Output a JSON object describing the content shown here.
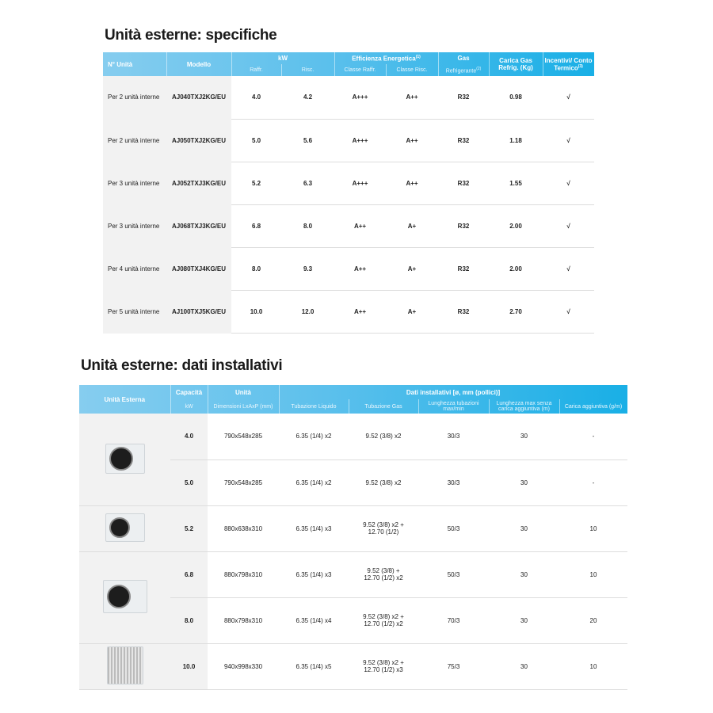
{
  "specs": {
    "title": "Unità esterne: specifiche",
    "headers": {
      "n_unita": "N° Unità",
      "modello": "Modello",
      "kw": "kW",
      "raffr": "Raffr.",
      "risc": "Risc.",
      "efficienza": "Efficienza Energetica",
      "efficienza_sup": "(1)",
      "classe_raffr": "Classe Raffr.",
      "classe_risc": "Classe Risc.",
      "gas": "Gas",
      "refrigerante": "Refrigerante",
      "refrigerante_sup": "(2)",
      "carica_gas": "Carica Gas Refrig. (Kg)",
      "incentivi": "Incentivi/ Conto Termico",
      "incentivi_sup": "(3)"
    },
    "rows": [
      {
        "n": "Per 2 unità interne",
        "modello": "AJ040TXJ2KG/EU",
        "raffr": "4.0",
        "risc": "4.2",
        "cl_raffr": "A+++",
        "cl_risc": "A++",
        "gas": "R32",
        "carica": "0.98",
        "incentivi": "√"
      },
      {
        "n": "Per 2 unità interne",
        "modello": "AJ050TXJ2KG/EU",
        "raffr": "5.0",
        "risc": "5.6",
        "cl_raffr": "A+++",
        "cl_risc": "A++",
        "gas": "R32",
        "carica": "1.18",
        "incentivi": "√"
      },
      {
        "n": "Per 3 unità interne",
        "modello": "AJ052TXJ3KG/EU",
        "raffr": "5.2",
        "risc": "6.3",
        "cl_raffr": "A+++",
        "cl_risc": "A++",
        "gas": "R32",
        "carica": "1.55",
        "incentivi": "√"
      },
      {
        "n": "Per 3 unità interne",
        "modello": "AJ068TXJ3KG/EU",
        "raffr": "6.8",
        "risc": "8.0",
        "cl_raffr": "A++",
        "cl_risc": "A+",
        "gas": "R32",
        "carica": "2.00",
        "incentivi": "√"
      },
      {
        "n": "Per 4 unità interne",
        "modello": "AJ080TXJ4KG/EU",
        "raffr": "8.0",
        "risc": "9.3",
        "cl_raffr": "A++",
        "cl_risc": "A+",
        "gas": "R32",
        "carica": "2.00",
        "incentivi": "√"
      },
      {
        "n": "Per 5 unità interne",
        "modello": "AJ100TXJ5KG/EU",
        "raffr": "10.0",
        "risc": "12.0",
        "cl_raffr": "A++",
        "cl_risc": "A+",
        "gas": "R32",
        "carica": "2.70",
        "incentivi": "√"
      }
    ]
  },
  "install": {
    "title": "Unità esterne: dati installativi",
    "headers": {
      "unita_esterna": "Unità Esterna",
      "capacita": "Capacità",
      "kw": "kW",
      "unita": "Unità",
      "dimensioni": "Dimensioni LxAxP (mm)",
      "dati": "Dati installativi [ø, mm (pollici)]",
      "liquido": "Tubazione Liquido",
      "gas": "Tubazione Gas",
      "lunghezza": "Lunghezza tubazioni max/min",
      "lunghezza_max": "Lunghezza max senza carica aggiuntiva (m)",
      "carica": "Carica aggiuntiva (g/m)"
    },
    "rows": [
      {
        "cap": "4.0",
        "dim": "790x548x285",
        "liq": "6.35 (1/4) x2",
        "gas": "9.52 (3/8) x2",
        "lung": "30/3",
        "lmax": "30",
        "carica": "-"
      },
      {
        "cap": "5.0",
        "dim": "790x548x285",
        "liq": "6.35 (1/4) x2",
        "gas": "9.52 (3/8) x2",
        "lung": "30/3",
        "lmax": "30",
        "carica": "-"
      },
      {
        "cap": "5.2",
        "dim": "880x638x310",
        "liq": "6.35 (1/4) x3",
        "gas": "9.52 (3/8) x2 + 12.70 (1/2)",
        "lung": "50/3",
        "lmax": "30",
        "carica": "10"
      },
      {
        "cap": "6.8",
        "dim": "880x798x310",
        "liq": "6.35 (1/4) x3",
        "gas": "9.52 (3/8) + 12.70 (1/2) x2",
        "lung": "50/3",
        "lmax": "30",
        "carica": "10"
      },
      {
        "cap": "8.0",
        "dim": "880x798x310",
        "liq": "6.35 (1/4) x4",
        "gas": "9.52 (3/8) x2 + 12.70 (1/2) x2",
        "lung": "70/3",
        "lmax": "30",
        "carica": "20"
      },
      {
        "cap": "10.0",
        "dim": "940x998x330",
        "liq": "6.35 (1/4) x5",
        "gas": "9.52 (3/8) x2 + 12.70 (1/2) x3",
        "lung": "75/3",
        "lmax": "30",
        "carica": "10"
      }
    ]
  }
}
